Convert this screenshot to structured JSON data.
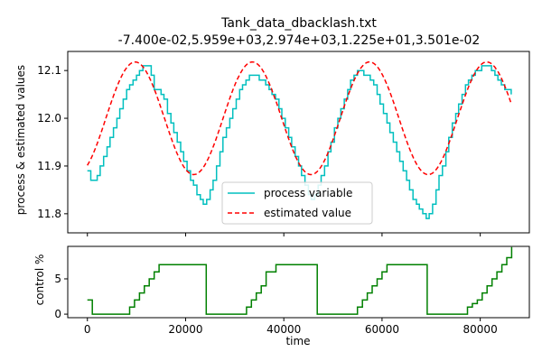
{
  "chart_data": [
    {
      "type": "line",
      "title": "Tank_data_dbacklash.txt",
      "subtitle": "-7.400e-02,5.959e+03,2.974e+03,1.225e+01,3.501e-02",
      "xlabel": "",
      "ylabel": "process & estimated values",
      "xlim": [
        -4000,
        90000
      ],
      "ylim": [
        11.76,
        12.14
      ],
      "yticks": [
        "11.8",
        "11.9",
        "12.0",
        "12.1"
      ],
      "legend": {
        "placement": "lower-center",
        "entries": [
          "process variable",
          "estimated value"
        ]
      },
      "series": [
        {
          "name": "process variable",
          "color": "#00bfbf",
          "style": "step",
          "x": [
            0,
            700,
            1300,
            2000,
            2600,
            3300,
            4000,
            4600,
            5300,
            6000,
            6600,
            7300,
            8000,
            8600,
            9300,
            10000,
            10600,
            11300,
            12000,
            13000,
            13600,
            14300,
            15000,
            15600,
            16300,
            17000,
            17600,
            18300,
            19000,
            19600,
            20300,
            21000,
            21600,
            22300,
            23000,
            23600,
            24300,
            25000,
            25600,
            26300,
            27000,
            27600,
            28300,
            29000,
            29600,
            30300,
            31000,
            31600,
            32300,
            33000,
            33600,
            34300,
            35000,
            35600,
            36300,
            37000,
            37600,
            38300,
            39000,
            39600,
            40300,
            41000,
            41600,
            42300,
            43000,
            43600,
            44300,
            45000,
            45600,
            46300,
            47000,
            47600,
            48300,
            49000,
            49600,
            50300,
            51000,
            51600,
            52300,
            53000,
            53600,
            54300,
            55000,
            55600,
            56300,
            57000,
            57600,
            58300,
            59000,
            59600,
            60300,
            61000,
            61600,
            62300,
            63000,
            63600,
            64300,
            65000,
            65600,
            66300,
            67000,
            67600,
            68300,
            69000,
            69600,
            70300,
            71000,
            71600,
            72300,
            73000,
            73600,
            74300,
            75000,
            75600,
            76300,
            77000,
            77600,
            78300,
            79000,
            79600,
            80300,
            81000,
            81600,
            82300,
            83000,
            83600,
            84300,
            85000,
            85600,
            86300
          ],
          "y": [
            11.89,
            11.87,
            11.87,
            11.88,
            11.9,
            11.92,
            11.94,
            11.96,
            11.98,
            12.0,
            12.02,
            12.04,
            12.06,
            12.07,
            12.08,
            12.09,
            12.1,
            12.11,
            12.11,
            12.09,
            12.06,
            12.06,
            12.05,
            12.04,
            12.01,
            11.99,
            11.97,
            11.95,
            11.93,
            11.91,
            11.89,
            11.87,
            11.86,
            11.84,
            11.83,
            11.82,
            11.83,
            11.85,
            11.87,
            11.9,
            11.93,
            11.96,
            11.98,
            12.0,
            12.02,
            12.04,
            12.06,
            12.07,
            12.08,
            12.09,
            12.09,
            12.09,
            12.08,
            12.08,
            12.07,
            12.06,
            12.05,
            12.04,
            12.02,
            12.0,
            11.98,
            11.96,
            11.94,
            11.92,
            11.9,
            11.88,
            11.86,
            11.84,
            11.83,
            11.84,
            11.86,
            11.88,
            11.9,
            11.93,
            11.95,
            11.98,
            12.0,
            12.02,
            12.04,
            12.06,
            12.08,
            12.09,
            12.1,
            12.1,
            12.09,
            12.09,
            12.08,
            12.07,
            12.05,
            12.03,
            12.01,
            11.99,
            11.97,
            11.95,
            11.93,
            11.91,
            11.89,
            11.87,
            11.85,
            11.83,
            11.82,
            11.81,
            11.8,
            11.79,
            11.8,
            11.82,
            11.85,
            11.88,
            11.9,
            11.93,
            11.96,
            11.99,
            12.01,
            12.03,
            12.05,
            12.07,
            12.08,
            12.09,
            12.1,
            12.1,
            12.11,
            12.11,
            12.11,
            12.1,
            12.09,
            12.08,
            12.07,
            12.06,
            12.06,
            12.05
          ]
        },
        {
          "name": "estimated value",
          "color": "#ff0000",
          "style": "dashed",
          "phase": 3760,
          "period": 23870,
          "amp": 0.118,
          "offset": 12.0,
          "xmin": 0,
          "xmax": 86300,
          "samples": 260
        }
      ]
    },
    {
      "type": "line",
      "title": "",
      "xlabel": "time",
      "ylabel": "control %",
      "xlim": [
        -4000,
        90000
      ],
      "ylim": [
        -0.5,
        9.6
      ],
      "yticks": [
        "0",
        "5"
      ],
      "xticks": [
        "0",
        "20000",
        "40000",
        "60000",
        "80000"
      ],
      "series": [
        {
          "name": "",
          "color": "#008000",
          "style": "step",
          "x": [
            0,
            1000,
            7600,
            8600,
            9600,
            10600,
            11600,
            12600,
            13600,
            14600,
            15600,
            24200,
            31400,
            32400,
            33400,
            34400,
            35400,
            36400,
            38400,
            46800,
            54000,
            55000,
            56000,
            57000,
            58000,
            59000,
            60000,
            61000,
            69200,
            76400,
            77400,
            78400,
            79400,
            80400,
            81400,
            82400,
            83400,
            84400,
            85400,
            86400
          ],
          "y": [
            2,
            0,
            0,
            1,
            2,
            3,
            4,
            5,
            6,
            7,
            7,
            0,
            0,
            1,
            2,
            3,
            4,
            6,
            7,
            0,
            0,
            1,
            2,
            3,
            4,
            5,
            6,
            7,
            0,
            0,
            1,
            1.5,
            2,
            3,
            4,
            5,
            6,
            7,
            8,
            9.5
          ]
        }
      ]
    }
  ]
}
